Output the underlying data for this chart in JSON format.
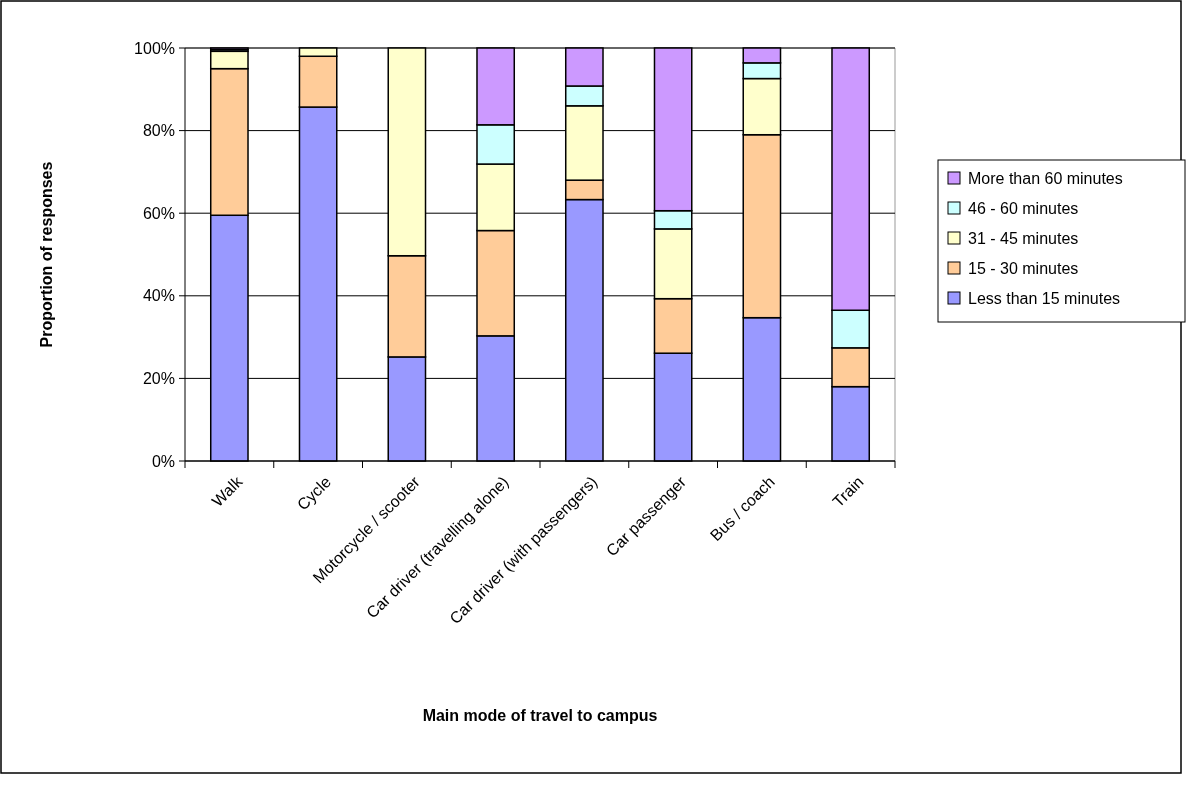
{
  "chart_data": {
    "type": "bar",
    "stacked": true,
    "xlabel": "Main mode of travel to campus",
    "ylabel": "Proportion of responses",
    "categories": [
      "Walk",
      "Cycle",
      "Motorcycle / scooter",
      "Car driver (travelling alone)",
      "Car driver (with passengers)",
      "Car passenger",
      "Bus / coach",
      "Train"
    ],
    "series": [
      {
        "name": "Less than 15 minutes",
        "color": "#9999ff",
        "values": [
          59.5,
          85.7,
          25.2,
          30.3,
          63.3,
          26.1,
          34.7,
          18.0
        ]
      },
      {
        "name": "15 - 30 minutes",
        "color": "#ffcc99",
        "values": [
          35.5,
          12.3,
          24.5,
          25.5,
          4.7,
          13.2,
          44.3,
          9.4
        ]
      },
      {
        "name": "31 - 45 minutes",
        "color": "#ffffcc",
        "values": [
          4.2,
          2.0,
          50.3,
          16.1,
          18.0,
          16.9,
          13.6,
          0
        ]
      },
      {
        "name": "46 - 60 minutes",
        "color": "#ccffff",
        "values": [
          0.4,
          0,
          0,
          9.5,
          4.8,
          4.4,
          3.8,
          9.1
        ]
      },
      {
        "name": "More than 60 minutes",
        "color": "#cc99ff",
        "values": [
          0.4,
          0,
          0,
          18.6,
          9.2,
          39.4,
          3.6,
          63.5
        ]
      }
    ],
    "ylim": [
      0,
      100
    ],
    "yticks": [
      {
        "value": 0,
        "label": "0%"
      },
      {
        "value": 20,
        "label": "20%"
      },
      {
        "value": 40,
        "label": "40%"
      },
      {
        "value": 60,
        "label": "60%"
      },
      {
        "value": 80,
        "label": "80%"
      },
      {
        "value": 100,
        "label": "100%"
      }
    ],
    "grid": "y",
    "legend": "right"
  }
}
